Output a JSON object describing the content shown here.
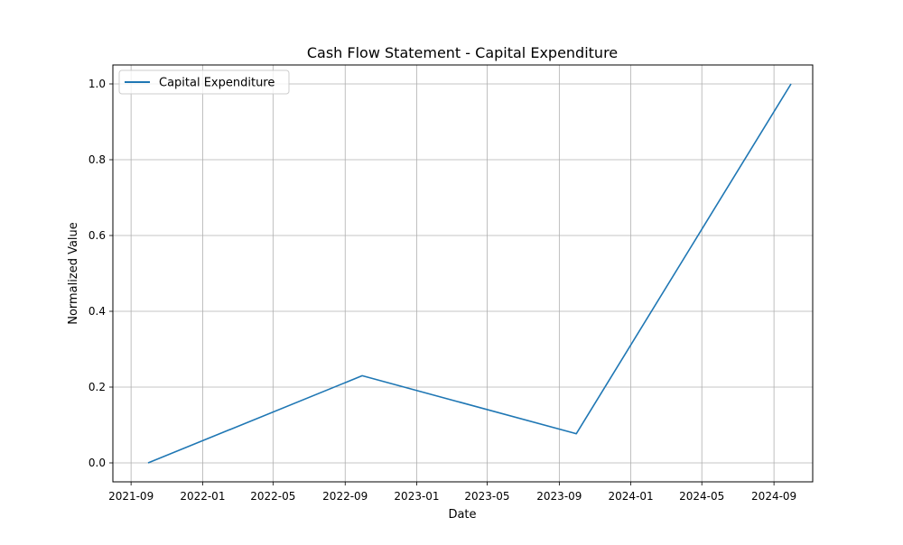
{
  "chart_data": {
    "type": "line",
    "title": "Cash Flow Statement - Capital Expenditure",
    "xlabel": "Date",
    "ylabel": "Normalized Value",
    "x_axis_type": "date",
    "xlim": [
      "2021-08-01",
      "2024-11-06"
    ],
    "ylim": [
      -0.05,
      1.05
    ],
    "x_ticks": [
      "2021-09",
      "2022-01",
      "2022-05",
      "2022-09",
      "2023-01",
      "2023-05",
      "2023-09",
      "2024-01",
      "2024-05",
      "2024-09"
    ],
    "y_ticks": [
      "0.0",
      "0.2",
      "0.4",
      "0.6",
      "0.8",
      "1.0"
    ],
    "grid": true,
    "legend_position": "upper-left",
    "series": [
      {
        "name": "Capital Expenditure",
        "color": "#1f77b4",
        "x": [
          "2021-09-30",
          "2022-09-30",
          "2023-09-30",
          "2024-09-30"
        ],
        "y": [
          0.0,
          0.23,
          0.077,
          1.0
        ]
      }
    ]
  }
}
